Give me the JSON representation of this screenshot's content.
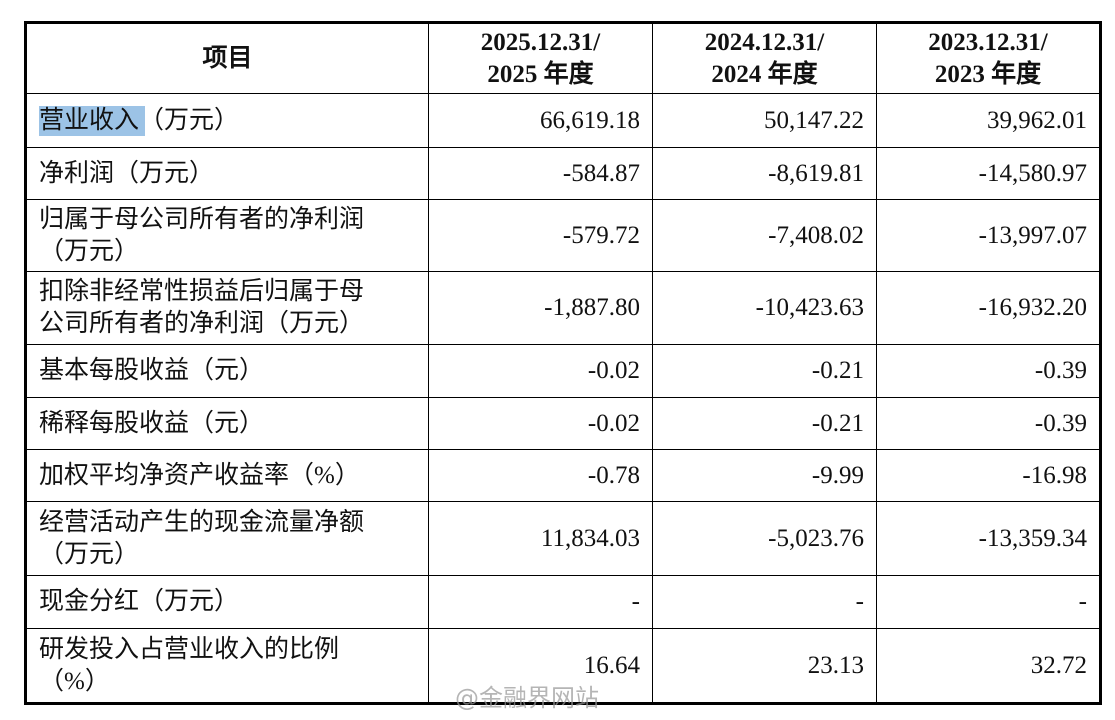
{
  "table": {
    "header": [
      [
        "项目"
      ],
      [
        "2025.12.31/",
        "2025 年度"
      ],
      [
        "2024.12.31/",
        "2024 年度"
      ],
      [
        "2023.12.31/",
        "2023 年度"
      ]
    ],
    "rows": [
      {
        "label": [
          "营业收入（万元）"
        ],
        "values": [
          "66,619.18",
          "50,147.22",
          "39,962.01"
        ]
      },
      {
        "label": [
          "净利润（万元）"
        ],
        "values": [
          "-584.87",
          "-8,619.81",
          "-14,580.97"
        ]
      },
      {
        "label": [
          "归属于母公司所有者的净利润",
          "（万元）"
        ],
        "values": [
          "-579.72",
          "-7,408.02",
          "-13,997.07"
        ]
      },
      {
        "label": [
          "扣除非经常性损益后归属于母",
          "公司所有者的净利润（万元）"
        ],
        "values": [
          "-1,887.80",
          "-10,423.63",
          "-16,932.20"
        ]
      },
      {
        "label": [
          "基本每股收益（元）"
        ],
        "values": [
          "-0.02",
          "-0.21",
          "-0.39"
        ]
      },
      {
        "label": [
          "稀释每股收益（元）"
        ],
        "values": [
          "-0.02",
          "-0.21",
          "-0.39"
        ]
      },
      {
        "label": [
          "加权平均净资产收益率（%）"
        ],
        "values": [
          "-0.78",
          "-9.99",
          "-16.98"
        ]
      },
      {
        "label": [
          "经营活动产生的现金流量净额",
          "（万元）"
        ],
        "values": [
          "11,834.03",
          "-5,023.76",
          "-13,359.34"
        ]
      },
      {
        "label": [
          "现金分红（万元）"
        ],
        "values": [
          "-",
          "-",
          "-"
        ]
      },
      {
        "label": [
          "研发投入占营业收入的比例",
          "（%）"
        ],
        "values": [
          "16.64",
          "23.13",
          "32.72"
        ]
      }
    ]
  },
  "watermark": "@金融界网站"
}
